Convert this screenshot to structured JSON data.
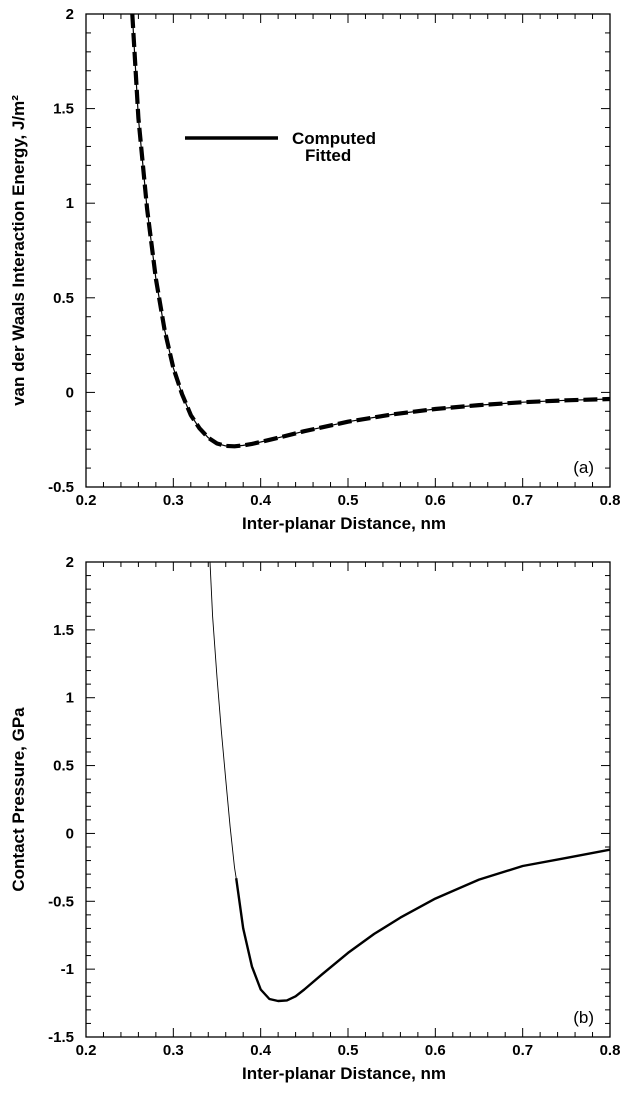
{
  "chart_data": [
    {
      "type": "line",
      "panel_label": "(a)",
      "xlabel": "Inter-planar Distance, nm",
      "ylabel": "van der Waals Interaction Energy, J/m²",
      "xlim": [
        0.2,
        0.8
      ],
      "ylim": [
        -0.5,
        2
      ],
      "x_ticks": [
        "0.2",
        "0.3",
        "0.4",
        "0.5",
        "0.6",
        "0.7",
        "0.8"
      ],
      "y_ticks": [
        "-0.5",
        "0",
        "0.5",
        "1",
        "1.5",
        "2"
      ],
      "grid": false,
      "legend": {
        "placement": "top-center",
        "entries": [
          "Computed",
          "Fitted"
        ]
      },
      "series": [
        {
          "name": "Computed",
          "style": "solid",
          "x": [
            0.253,
            0.26,
            0.27,
            0.28,
            0.29,
            0.3,
            0.31,
            0.32,
            0.33,
            0.34,
            0.35,
            0.36,
            0.37,
            0.38,
            0.39,
            0.4,
            0.42,
            0.45,
            0.5,
            0.55,
            0.6,
            0.65,
            0.7,
            0.75,
            0.8
          ],
          "y": [
            2.0,
            1.45,
            0.97,
            0.6,
            0.33,
            0.13,
            -0.01,
            -0.12,
            -0.19,
            -0.24,
            -0.27,
            -0.283,
            -0.285,
            -0.28,
            -0.272,
            -0.262,
            -0.24,
            -0.205,
            -0.155,
            -0.117,
            -0.088,
            -0.067,
            -0.052,
            -0.042,
            -0.035
          ]
        },
        {
          "name": "Fitted",
          "style": "dashed",
          "x": [
            0.253,
            0.26,
            0.27,
            0.28,
            0.29,
            0.3,
            0.31,
            0.32,
            0.33,
            0.34,
            0.35,
            0.36,
            0.37,
            0.38,
            0.39,
            0.4,
            0.42,
            0.45,
            0.5,
            0.55,
            0.6,
            0.65,
            0.7,
            0.75,
            0.8
          ],
          "y": [
            2.0,
            1.45,
            0.97,
            0.6,
            0.33,
            0.13,
            -0.01,
            -0.12,
            -0.19,
            -0.24,
            -0.27,
            -0.283,
            -0.285,
            -0.28,
            -0.272,
            -0.262,
            -0.24,
            -0.205,
            -0.155,
            -0.117,
            -0.088,
            -0.067,
            -0.052,
            -0.042,
            -0.035
          ]
        }
      ]
    },
    {
      "type": "line",
      "panel_label": "(b)",
      "xlabel": "Inter-planar Distance, nm",
      "ylabel": "Contact Pressure, GPa",
      "xlim": [
        0.2,
        0.8
      ],
      "ylim": [
        -1.5,
        2
      ],
      "x_ticks": [
        "0.2",
        "0.3",
        "0.4",
        "0.5",
        "0.6",
        "0.7",
        "0.8"
      ],
      "y_ticks": [
        "-1.5",
        "-1",
        "-0.5",
        "0",
        "0.5",
        "1",
        "1.5",
        "2"
      ],
      "grid": false,
      "series": [
        {
          "style": "thin",
          "x": [
            0.342,
            0.345,
            0.35,
            0.355,
            0.36,
            0.365,
            0.37,
            0.372
          ],
          "y": [
            2.0,
            1.6,
            1.15,
            0.75,
            0.4,
            0.05,
            -0.25,
            -0.33
          ]
        },
        {
          "style": "thick",
          "x": [
            0.372,
            0.38,
            0.39,
            0.4,
            0.41,
            0.42,
            0.43,
            0.44,
            0.45,
            0.47,
            0.5,
            0.53,
            0.56,
            0.6,
            0.65,
            0.7,
            0.75,
            0.8
          ],
          "y": [
            -0.33,
            -0.7,
            -0.98,
            -1.15,
            -1.22,
            -1.235,
            -1.23,
            -1.2,
            -1.15,
            -1.04,
            -0.88,
            -0.74,
            -0.62,
            -0.48,
            -0.34,
            -0.24,
            -0.18,
            -0.12
          ]
        }
      ]
    }
  ]
}
